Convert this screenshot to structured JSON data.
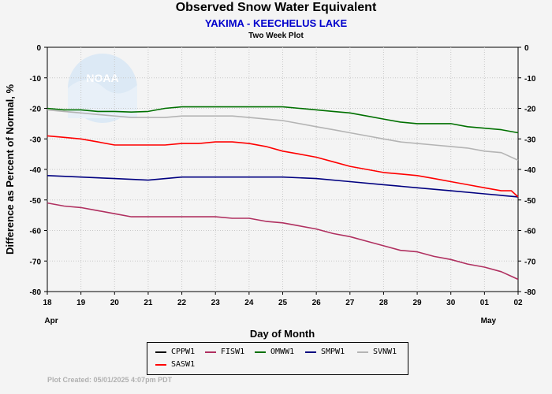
{
  "title": "Observed Snow Water Equivalent",
  "subtitle": "YAKIMA - KEECHELUS LAKE",
  "subsubtitle": "Two Week Plot",
  "footer": "Plot Created: 05/01/2025 4:07pm PDT",
  "logo_text": "NOAA",
  "chart_data": {
    "type": "line",
    "xlabel": "Day of Month",
    "ylabel": "Difference as Percent of Normal, %",
    "x_ticks": [
      "18",
      "19",
      "20",
      "21",
      "22",
      "23",
      "24",
      "25",
      "26",
      "27",
      "28",
      "29",
      "30",
      "01",
      "02"
    ],
    "month_labels": [
      {
        "label": "Apr",
        "at": "18"
      },
      {
        "label": "May",
        "at": "01"
      }
    ],
    "xlim": [
      0,
      14
    ],
    "ylim": [
      -80,
      0
    ],
    "y_ticks": [
      0,
      -10,
      -20,
      -30,
      -40,
      -50,
      -60,
      -70,
      -80
    ],
    "grid": true,
    "legend_position": "bottom",
    "series": [
      {
        "name": "CPPW1",
        "color": "#000000",
        "points": []
      },
      {
        "name": "FISW1",
        "color": "#b03060",
        "points": [
          [
            0,
            -51
          ],
          [
            0.5,
            -52
          ],
          [
            1,
            -52.5
          ],
          [
            1.5,
            -53.5
          ],
          [
            2,
            -54.5
          ],
          [
            2.5,
            -55.5
          ],
          [
            3,
            -55.5
          ],
          [
            3.5,
            -55.5
          ],
          [
            4,
            -55.5
          ],
          [
            4.5,
            -55.5
          ],
          [
            5,
            -55.5
          ],
          [
            5.5,
            -56
          ],
          [
            6,
            -56
          ],
          [
            6.5,
            -57
          ],
          [
            7,
            -57.5
          ],
          [
            7.5,
            -58.5
          ],
          [
            8,
            -59.5
          ],
          [
            8.5,
            -61
          ],
          [
            9,
            -62
          ],
          [
            9.5,
            -63.5
          ],
          [
            10,
            -65
          ],
          [
            10.5,
            -66.5
          ],
          [
            11,
            -67
          ],
          [
            11.5,
            -68.5
          ],
          [
            12,
            -69.5
          ],
          [
            12.5,
            -71
          ],
          [
            13,
            -72
          ],
          [
            13.5,
            -73.5
          ],
          [
            13.8,
            -75
          ],
          [
            14,
            -76
          ]
        ]
      },
      {
        "name": "OMWW1",
        "color": "#007000",
        "points": [
          [
            0,
            -20
          ],
          [
            0.5,
            -20.5
          ],
          [
            1,
            -20.5
          ],
          [
            1.5,
            -21
          ],
          [
            2,
            -21
          ],
          [
            2.5,
            -21.2
          ],
          [
            3,
            -21
          ],
          [
            3.5,
            -20
          ],
          [
            4,
            -19.5
          ],
          [
            4.5,
            -19.5
          ],
          [
            5,
            -19.5
          ],
          [
            5.5,
            -19.5
          ],
          [
            6,
            -19.5
          ],
          [
            6.5,
            -19.5
          ],
          [
            7,
            -19.5
          ],
          [
            7.5,
            -20
          ],
          [
            8,
            -20.5
          ],
          [
            8.5,
            -21
          ],
          [
            9,
            -21.5
          ],
          [
            9.5,
            -22.5
          ],
          [
            10,
            -23.5
          ],
          [
            10.5,
            -24.5
          ],
          [
            11,
            -25
          ],
          [
            11.5,
            -25
          ],
          [
            12,
            -25
          ],
          [
            12.5,
            -26
          ],
          [
            13,
            -26.5
          ],
          [
            13.5,
            -27
          ],
          [
            14,
            -28
          ]
        ]
      },
      {
        "name": "SMPW1",
        "color": "#000080",
        "points": [
          [
            0,
            -42
          ],
          [
            1,
            -42.5
          ],
          [
            2,
            -43
          ],
          [
            3,
            -43.5
          ],
          [
            4,
            -42.5
          ],
          [
            5,
            -42.5
          ],
          [
            6,
            -42.5
          ],
          [
            7,
            -42.5
          ],
          [
            8,
            -43
          ],
          [
            9,
            -44
          ],
          [
            10,
            -45
          ],
          [
            11,
            -46
          ],
          [
            12,
            -47
          ],
          [
            13,
            -48
          ],
          [
            14,
            -49
          ]
        ]
      },
      {
        "name": "SVNW1",
        "color": "#b4b4b4",
        "points": [
          [
            0,
            -20.5
          ],
          [
            0.5,
            -21
          ],
          [
            1,
            -21.5
          ],
          [
            1.5,
            -22
          ],
          [
            2,
            -22.5
          ],
          [
            2.5,
            -23
          ],
          [
            3,
            -23
          ],
          [
            3.5,
            -23
          ],
          [
            4,
            -22.5
          ],
          [
            4.5,
            -22.5
          ],
          [
            5,
            -22.5
          ],
          [
            5.5,
            -22.5
          ],
          [
            6,
            -23
          ],
          [
            6.5,
            -23.5
          ],
          [
            7,
            -24
          ],
          [
            7.5,
            -25
          ],
          [
            8,
            -26
          ],
          [
            8.5,
            -27
          ],
          [
            9,
            -28
          ],
          [
            9.5,
            -29
          ],
          [
            10,
            -30
          ],
          [
            10.5,
            -31
          ],
          [
            11,
            -31.5
          ],
          [
            11.5,
            -32
          ],
          [
            12,
            -32.5
          ],
          [
            12.5,
            -33
          ],
          [
            13,
            -34
          ],
          [
            13.5,
            -34.5
          ],
          [
            14,
            -37
          ]
        ]
      },
      {
        "name": "SASW1",
        "color": "#ff0000",
        "points": [
          [
            0,
            -29
          ],
          [
            0.5,
            -29.5
          ],
          [
            1,
            -30
          ],
          [
            1.5,
            -31
          ],
          [
            2,
            -32
          ],
          [
            2.5,
            -32
          ],
          [
            3,
            -32
          ],
          [
            3.5,
            -32
          ],
          [
            4,
            -31.5
          ],
          [
            4.5,
            -31.5
          ],
          [
            5,
            -31
          ],
          [
            5.5,
            -31
          ],
          [
            6,
            -31.5
          ],
          [
            6.5,
            -32.5
          ],
          [
            7,
            -34
          ],
          [
            7.5,
            -35
          ],
          [
            8,
            -36
          ],
          [
            8.5,
            -37.5
          ],
          [
            9,
            -39
          ],
          [
            9.5,
            -40
          ],
          [
            10,
            -41
          ],
          [
            10.5,
            -41.5
          ],
          [
            11,
            -42
          ],
          [
            11.5,
            -43
          ],
          [
            12,
            -44
          ],
          [
            12.5,
            -45
          ],
          [
            13,
            -46
          ],
          [
            13.5,
            -47
          ],
          [
            13.8,
            -47
          ],
          [
            14,
            -49
          ]
        ]
      }
    ]
  }
}
